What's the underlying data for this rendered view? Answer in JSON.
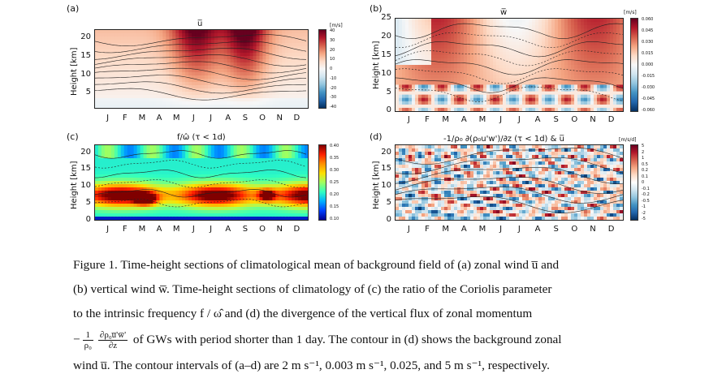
{
  "panels": [
    {
      "letter": "(a)",
      "title": "u̅",
      "ylabel": "Height [km]",
      "yticks": [
        "20",
        "15",
        "10",
        "5"
      ],
      "months": [
        "J",
        "F",
        "M",
        "A",
        "M",
        "J",
        "J",
        "A",
        "S",
        "O",
        "N",
        "D"
      ],
      "cbar_unit": "[m/s]",
      "cbar_ticks": [
        "40",
        "30",
        "20",
        "10",
        "0",
        "-10",
        "-20",
        "-30",
        "-40"
      ],
      "palette": "diverging",
      "ymax": 22
    },
    {
      "letter": "(b)",
      "title": "w̅",
      "ylabel": "Height [km]",
      "yticks": [
        "25",
        "20",
        "15",
        "10",
        "5",
        "0"
      ],
      "months": [
        "J",
        "F",
        "M",
        "A",
        "M",
        "J",
        "J",
        "A",
        "S",
        "O",
        "N",
        "D"
      ],
      "cbar_unit": "[m/s]",
      "cbar_ticks": [
        "0.060",
        "0.045",
        "0.030",
        "0.015",
        "0.000",
        "-0.015",
        "-0.030",
        "-0.045",
        "-0.060"
      ],
      "palette": "diverging",
      "ymax": 25
    },
    {
      "letter": "(c)",
      "title": "f/ω̂ (τ < 1d)",
      "ylabel": "Height [km]",
      "yticks": [
        "20",
        "15",
        "10",
        "5",
        "0"
      ],
      "months": [
        "J",
        "F",
        "M",
        "A",
        "M",
        "J",
        "J",
        "A",
        "S",
        "O",
        "N",
        "D"
      ],
      "cbar_unit": "",
      "cbar_ticks": [
        "0.40",
        "0.35",
        "0.30",
        "0.25",
        "0.20",
        "0.15",
        "0.10"
      ],
      "palette": "jet",
      "ymax": 22
    },
    {
      "letter": "(d)",
      "title": "-1/ρ₀ ∂(ρ₀u'w')/∂z (τ < 1d) & u̅",
      "ylabel": "Height [km]",
      "yticks": [
        "20",
        "15",
        "10",
        "5",
        "0"
      ],
      "months": [
        "J",
        "F",
        "M",
        "A",
        "M",
        "J",
        "J",
        "A",
        "S",
        "O",
        "N",
        "D"
      ],
      "cbar_unit": "[m/s/d]",
      "cbar_ticks": [
        "5",
        "2",
        "1",
        "0.5",
        "0.2",
        "0.1",
        "0",
        "-0.1",
        "-0.2",
        "-0.5",
        "-1",
        "-2",
        "-5"
      ],
      "palette": "diverging",
      "ymax": 22
    }
  ],
  "caption": {
    "line1": "Figure 1. Time-height sections of climatological mean of background field of (a) zonal wind  u̅  and",
    "line2": "(b) vertical wind  w̅. Time-height sections of climatology of (c) the ratio of the Coriolis parameter",
    "line3": "to the intrinsic frequency  f / ω̂  and (d) the divergence of the vertical flux of zonal momentum",
    "frac_prefix": "−",
    "frac1_num": "1",
    "frac1_den": "ρ₀",
    "frac2_num": "∂ρ₀u̅'w̅'",
    "frac2_den": "∂z",
    "line4_rest": " of GWs with period shorter than 1 day. The contour in (d) shows the background zonal",
    "line5": "wind  u̅. The contour intervals of (a–d) are 2 m s⁻¹, 0.003 m s⁻¹, 0.025, and 5 m s⁻¹, respectively."
  }
}
